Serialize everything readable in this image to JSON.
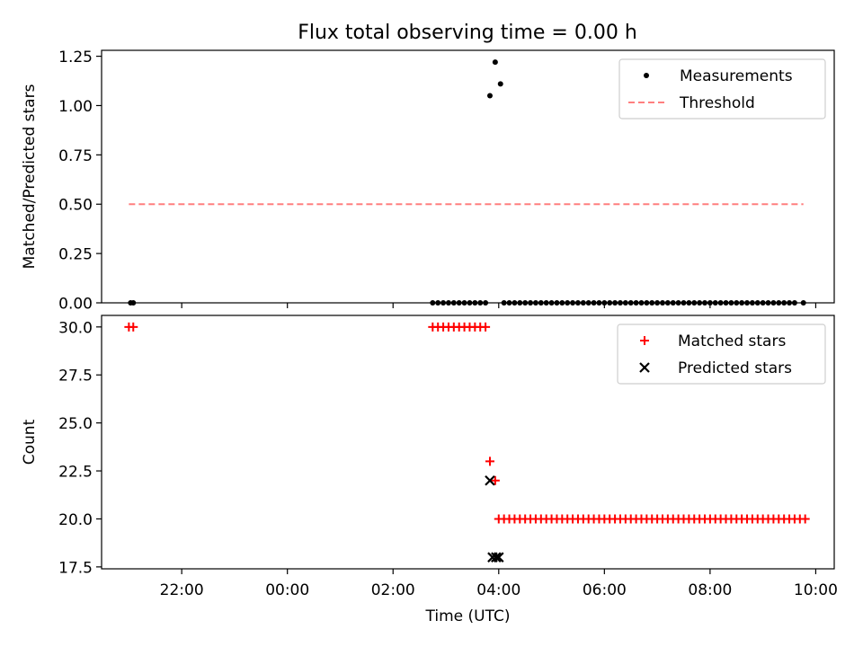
{
  "title": "Flux total observing time = 0.00 h",
  "colors": {
    "measurement": "#000000",
    "threshold": "#ff7f7f",
    "matched": "#ff0000",
    "predicted": "#000000",
    "axes": "#000000",
    "background": "#ffffff"
  },
  "chart_data": [
    {
      "type": "scatter",
      "title": "Flux total observing time = 0.00 h",
      "xlabel": "",
      "ylabel": "Matched/Predicted stars",
      "xlim": [
        "20:29",
        "10:21"
      ],
      "ylim": [
        0,
        1.28
      ],
      "yticks": [
        0.0,
        0.25,
        0.5,
        0.75,
        1.0,
        1.25
      ],
      "ytick_labels": [
        "0.00",
        "0.25",
        "0.50",
        "0.75",
        "1.00",
        "1.25"
      ],
      "xticks": [
        "22:00",
        "00:00",
        "02:00",
        "04:00",
        "06:00",
        "08:00",
        "10:00"
      ],
      "show_xtick_labels": false,
      "grid": false,
      "legend": {
        "placement": "upper right",
        "entries": [
          "Measurements",
          "Threshold"
        ]
      },
      "series": [
        {
          "name": "Measurements",
          "kind": "scatter",
          "marker": "dot",
          "points": [
            [
              "21:02",
              0
            ],
            [
              "21:05",
              0
            ],
            [
              "02:45",
              0
            ],
            [
              "02:51",
              0
            ],
            [
              "02:57",
              0
            ],
            [
              "03:03",
              0
            ],
            [
              "03:09",
              0
            ],
            [
              "03:15",
              0
            ],
            [
              "03:21",
              0
            ],
            [
              "03:27",
              0
            ],
            [
              "03:33",
              0
            ],
            [
              "03:39",
              0
            ],
            [
              "03:45",
              0
            ],
            [
              "03:50",
              1.05
            ],
            [
              "03:56",
              1.22
            ],
            [
              "04:02",
              1.11
            ],
            [
              "04:06",
              0
            ],
            [
              "04:12",
              0
            ],
            [
              "04:18",
              0
            ],
            [
              "04:24",
              0
            ],
            [
              "04:30",
              0
            ],
            [
              "04:36",
              0
            ],
            [
              "04:42",
              0
            ],
            [
              "04:48",
              0
            ],
            [
              "04:54",
              0
            ],
            [
              "05:00",
              0
            ],
            [
              "05:06",
              0
            ],
            [
              "05:12",
              0
            ],
            [
              "05:18",
              0
            ],
            [
              "05:24",
              0
            ],
            [
              "05:30",
              0
            ],
            [
              "05:36",
              0
            ],
            [
              "05:42",
              0
            ],
            [
              "05:48",
              0
            ],
            [
              "05:54",
              0
            ],
            [
              "06:00",
              0
            ],
            [
              "06:06",
              0
            ],
            [
              "06:12",
              0
            ],
            [
              "06:18",
              0
            ],
            [
              "06:24",
              0
            ],
            [
              "06:30",
              0
            ],
            [
              "06:36",
              0
            ],
            [
              "06:42",
              0
            ],
            [
              "06:48",
              0
            ],
            [
              "06:54",
              0
            ],
            [
              "07:00",
              0
            ],
            [
              "07:06",
              0
            ],
            [
              "07:12",
              0
            ],
            [
              "07:18",
              0
            ],
            [
              "07:24",
              0
            ],
            [
              "07:30",
              0
            ],
            [
              "07:36",
              0
            ],
            [
              "07:42",
              0
            ],
            [
              "07:48",
              0
            ],
            [
              "07:54",
              0
            ],
            [
              "08:00",
              0
            ],
            [
              "08:06",
              0
            ],
            [
              "08:12",
              0
            ],
            [
              "08:18",
              0
            ],
            [
              "08:24",
              0
            ],
            [
              "08:30",
              0
            ],
            [
              "08:36",
              0
            ],
            [
              "08:42",
              0
            ],
            [
              "08:48",
              0
            ],
            [
              "08:54",
              0
            ],
            [
              "09:00",
              0
            ],
            [
              "09:06",
              0
            ],
            [
              "09:12",
              0
            ],
            [
              "09:18",
              0
            ],
            [
              "09:24",
              0
            ],
            [
              "09:30",
              0
            ],
            [
              "09:36",
              0
            ],
            [
              "09:46",
              0
            ]
          ]
        },
        {
          "name": "Threshold",
          "kind": "line",
          "style": "dashed",
          "points": [
            [
              "21:00",
              0.5
            ],
            [
              "09:46",
              0.5
            ]
          ]
        }
      ]
    },
    {
      "type": "scatter",
      "title": "",
      "xlabel": "Time (UTC)",
      "ylabel": "Count",
      "xlim": [
        "20:29",
        "10:21"
      ],
      "ylim": [
        17.4,
        30.6
      ],
      "yticks": [
        17.5,
        20.0,
        22.5,
        25.0,
        27.5,
        30.0
      ],
      "ytick_labels": [
        "17.5",
        "20.0",
        "22.5",
        "25.0",
        "27.5",
        "30.0"
      ],
      "xticks": [
        "22:00",
        "00:00",
        "02:00",
        "04:00",
        "06:00",
        "08:00",
        "10:00"
      ],
      "xtick_labels": [
        "22:00",
        "00:00",
        "02:00",
        "04:00",
        "06:00",
        "08:00",
        "10:00"
      ],
      "show_xtick_labels": true,
      "grid": false,
      "legend": {
        "placement": "upper right",
        "entries": [
          "Matched stars",
          "Predicted stars"
        ]
      },
      "series": [
        {
          "name": "Matched stars",
          "kind": "scatter",
          "marker": "plus",
          "points": [
            [
              "21:00",
              30
            ],
            [
              "21:05",
              30
            ],
            [
              "02:45",
              30
            ],
            [
              "02:51",
              30
            ],
            [
              "02:57",
              30
            ],
            [
              "03:03",
              30
            ],
            [
              "03:09",
              30
            ],
            [
              "03:15",
              30
            ],
            [
              "03:21",
              30
            ],
            [
              "03:27",
              30
            ],
            [
              "03:33",
              30
            ],
            [
              "03:39",
              30
            ],
            [
              "03:45",
              30
            ],
            [
              "03:50",
              23
            ],
            [
              "03:56",
              22
            ],
            [
              "04:00",
              20
            ],
            [
              "04:06",
              20
            ],
            [
              "04:12",
              20
            ],
            [
              "04:18",
              20
            ],
            [
              "04:24",
              20
            ],
            [
              "04:30",
              20
            ],
            [
              "04:36",
              20
            ],
            [
              "04:42",
              20
            ],
            [
              "04:48",
              20
            ],
            [
              "04:54",
              20
            ],
            [
              "05:00",
              20
            ],
            [
              "05:06",
              20
            ],
            [
              "05:12",
              20
            ],
            [
              "05:18",
              20
            ],
            [
              "05:24",
              20
            ],
            [
              "05:30",
              20
            ],
            [
              "05:36",
              20
            ],
            [
              "05:42",
              20
            ],
            [
              "05:48",
              20
            ],
            [
              "05:54",
              20
            ],
            [
              "06:00",
              20
            ],
            [
              "06:06",
              20
            ],
            [
              "06:12",
              20
            ],
            [
              "06:18",
              20
            ],
            [
              "06:24",
              20
            ],
            [
              "06:30",
              20
            ],
            [
              "06:36",
              20
            ],
            [
              "06:42",
              20
            ],
            [
              "06:48",
              20
            ],
            [
              "06:54",
              20
            ],
            [
              "07:00",
              20
            ],
            [
              "07:06",
              20
            ],
            [
              "07:12",
              20
            ],
            [
              "07:18",
              20
            ],
            [
              "07:24",
              20
            ],
            [
              "07:30",
              20
            ],
            [
              "07:36",
              20
            ],
            [
              "07:42",
              20
            ],
            [
              "07:48",
              20
            ],
            [
              "07:54",
              20
            ],
            [
              "08:00",
              20
            ],
            [
              "08:06",
              20
            ],
            [
              "08:12",
              20
            ],
            [
              "08:18",
              20
            ],
            [
              "08:24",
              20
            ],
            [
              "08:30",
              20
            ],
            [
              "08:36",
              20
            ],
            [
              "08:42",
              20
            ],
            [
              "08:48",
              20
            ],
            [
              "08:54",
              20
            ],
            [
              "09:00",
              20
            ],
            [
              "09:06",
              20
            ],
            [
              "09:12",
              20
            ],
            [
              "09:18",
              20
            ],
            [
              "09:24",
              20
            ],
            [
              "09:30",
              20
            ],
            [
              "09:36",
              20
            ],
            [
              "09:42",
              20
            ],
            [
              "09:48",
              20
            ]
          ]
        },
        {
          "name": "Predicted stars",
          "kind": "scatter",
          "marker": "x",
          "points": [
            [
              "03:50",
              22
            ],
            [
              "03:53",
              18
            ],
            [
              "03:57",
              18
            ],
            [
              "04:00",
              18
            ]
          ]
        }
      ]
    }
  ]
}
